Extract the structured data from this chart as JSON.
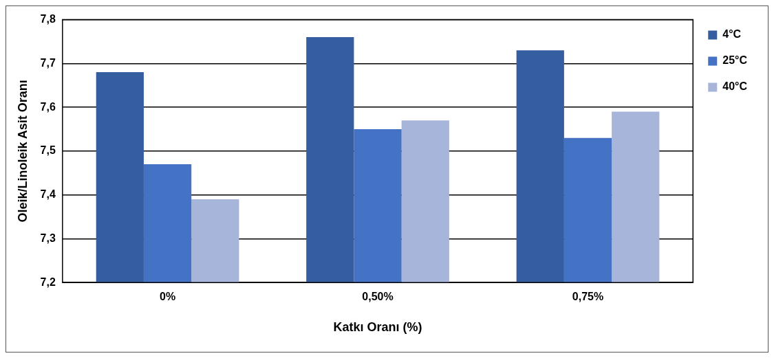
{
  "chart_data": {
    "type": "bar",
    "xlabel": "Katkı Oranı (%)",
    "ylabel": "Oleik/Linoleik Asit Oranı",
    "categories": [
      "0%",
      "0,50%",
      "0,75%"
    ],
    "series": [
      {
        "name": "4°C",
        "color": "#355ea0",
        "values": [
          7.68,
          7.76,
          7.73
        ]
      },
      {
        "name": "25°C",
        "color": "#4472c4",
        "values": [
          7.47,
          7.55,
          7.53
        ]
      },
      {
        "name": "40°C",
        "color": "#a7b5da",
        "values": [
          7.39,
          7.57,
          7.59
        ]
      }
    ],
    "ylim": [
      7.2,
      7.8
    ],
    "yticks": [
      {
        "value": 7.2,
        "label": "7,2"
      },
      {
        "value": 7.3,
        "label": "7,3"
      },
      {
        "value": 7.4,
        "label": "7,4"
      },
      {
        "value": 7.5,
        "label": "7,5"
      },
      {
        "value": 7.6,
        "label": "7,6"
      },
      {
        "value": 7.7,
        "label": "7,7"
      },
      {
        "value": 7.8,
        "label": "7,8"
      }
    ],
    "grid": "y",
    "legend": "right"
  }
}
